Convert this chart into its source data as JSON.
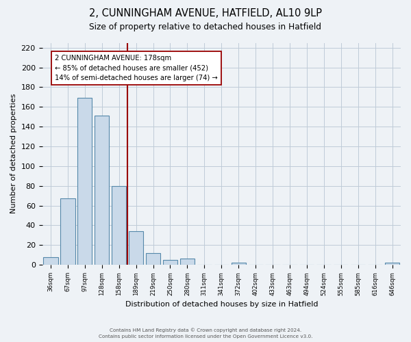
{
  "title_line1": "2, CUNNINGHAM AVENUE, HATFIELD, AL10 9LP",
  "title_line2": "Size of property relative to detached houses in Hatfield",
  "xlabel": "Distribution of detached houses by size in Hatfield",
  "ylabel": "Number of detached properties",
  "bar_labels": [
    "36sqm",
    "67sqm",
    "97sqm",
    "128sqm",
    "158sqm",
    "189sqm",
    "219sqm",
    "250sqm",
    "280sqm",
    "311sqm",
    "341sqm",
    "372sqm",
    "402sqm",
    "433sqm",
    "463sqm",
    "494sqm",
    "524sqm",
    "555sqm",
    "585sqm",
    "616sqm",
    "646sqm"
  ],
  "bar_values": [
    8,
    67,
    169,
    151,
    80,
    34,
    12,
    5,
    6,
    0,
    0,
    2,
    0,
    0,
    0,
    0,
    0,
    0,
    0,
    0,
    2
  ],
  "bar_color": "#c9d9e9",
  "bar_edge_color": "#5588aa",
  "grid_color": "#bfcbd8",
  "vline_x": 4.5,
  "vline_color": "#990000",
  "annotation_text_line1": "2 CUNNINGHAM AVENUE: 178sqm",
  "annotation_text_line2": "← 85% of detached houses are smaller (452)",
  "annotation_text_line3": "14% of semi-detached houses are larger (74) →",
  "annotation_box_color": "#ffffff",
  "annotation_box_edge": "#990000",
  "ylim": [
    0,
    225
  ],
  "yticks": [
    0,
    20,
    40,
    60,
    80,
    100,
    120,
    140,
    160,
    180,
    200,
    220
  ],
  "footer_line1": "Contains HM Land Registry data © Crown copyright and database right 2024.",
  "footer_line2": "Contains public sector information licensed under the Open Government Licence v3.0.",
  "bg_color": "#eef2f6"
}
